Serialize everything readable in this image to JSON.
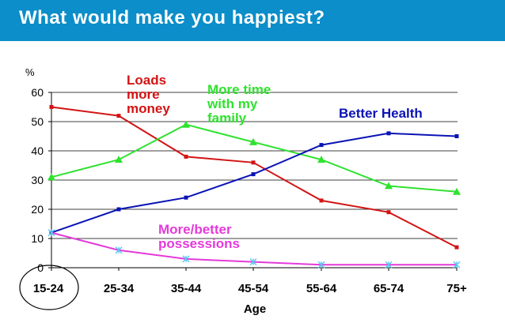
{
  "title": "What would make you happiest?",
  "colors": {
    "title_bar": "#0b8ec9",
    "money": "#d21414",
    "family": "#2fe22f",
    "health": "#0a13b5",
    "possessions": "#e43ad9"
  },
  "chart_data": {
    "type": "line",
    "title": "",
    "xlabel": "Age",
    "ylabel": "%",
    "ylim": [
      0,
      60
    ],
    "yticks": [
      "0",
      "10",
      "20",
      "30",
      "40",
      "50",
      "60"
    ],
    "categories": [
      "15-24",
      "25-34",
      "35-44",
      "45-54",
      "55-64",
      "65-74",
      "75+"
    ],
    "grid": "horizontal",
    "highlighted_category": "15-24",
    "series": [
      {
        "name": "Loads more money",
        "label_lines": [
          "Loads",
          "more",
          "money"
        ],
        "color": "#d21414",
        "marker": "square",
        "values": [
          55,
          52,
          38,
          36,
          23,
          19,
          7
        ]
      },
      {
        "name": "More time with my family",
        "label_lines": [
          "More time",
          "with my",
          "family"
        ],
        "color": "#2fe22f",
        "marker": "triangle",
        "values": [
          31,
          37,
          49,
          43,
          37,
          28,
          26
        ]
      },
      {
        "name": "Better Health",
        "label_lines": [
          "Better Health"
        ],
        "color": "#0a13b5",
        "marker": "square",
        "values": [
          12,
          20,
          24,
          32,
          42,
          46,
          45
        ]
      },
      {
        "name": "More/better possessions",
        "label_lines": [
          "More/better",
          "possessions"
        ],
        "color": "#e43ad9",
        "marker": "star",
        "values": [
          12,
          6,
          3,
          2,
          1,
          1,
          1
        ]
      }
    ]
  }
}
